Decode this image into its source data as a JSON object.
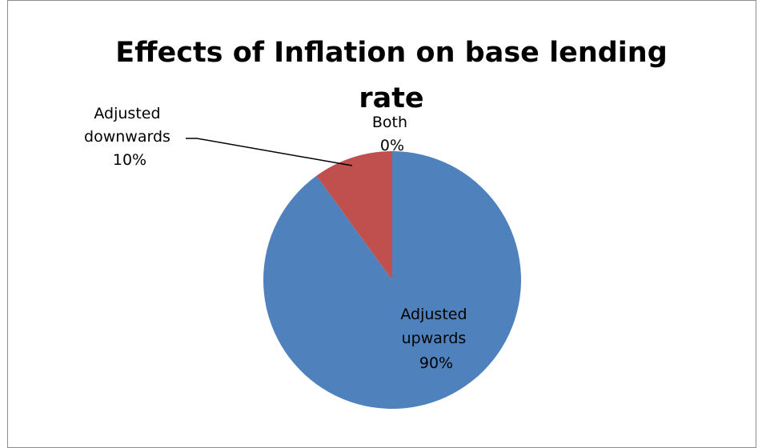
{
  "chart_data": {
    "type": "pie",
    "title": "Effects of Inflation on base lending rate",
    "title_lines": [
      "Effects of Inflation on base lending",
      "rate"
    ],
    "categories": [
      "Adjusted upwards",
      "Adjusted downwards",
      "Both"
    ],
    "values": [
      90,
      10,
      0
    ],
    "unit": "%",
    "colors": [
      "#4f81bd",
      "#c0504d",
      "#9bbb59"
    ],
    "slices": [
      {
        "label_lines": [
          "Adjusted",
          "upwards",
          "90%"
        ]
      },
      {
        "label_lines": [
          "Adjusted",
          "downwards",
          "10%"
        ]
      },
      {
        "label_lines": [
          "Both",
          "0%"
        ]
      }
    ],
    "legend": "none"
  }
}
